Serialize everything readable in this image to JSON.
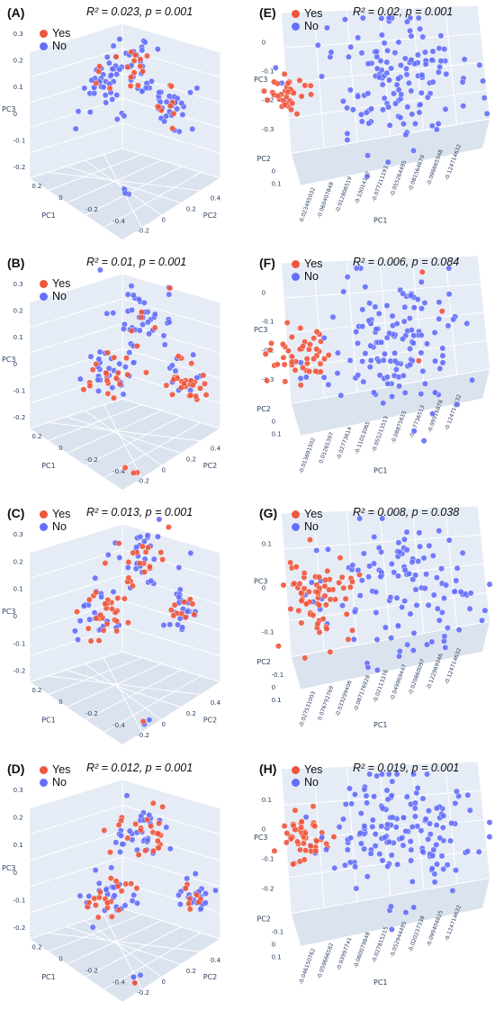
{
  "legend": {
    "yes_label": "Yes",
    "no_label": "No"
  },
  "colors": {
    "yes": "#ef553b",
    "no": "#636efa",
    "pane": "#e5ecf6",
    "grid": "#ffffff"
  },
  "chart_data": [
    {
      "tag": "(A)",
      "type": "scatter",
      "kind": "pca",
      "title": "R² = 0.023, p = 0.001",
      "zaxis": "PC3",
      "xaxis": "PC1",
      "yaxis": "PC2",
      "z_ticks": [
        "0.3",
        "0.2",
        "0.1",
        "0",
        "-0.1",
        "-0.2"
      ],
      "x_ticks": [
        "0.2",
        "0",
        "-0.2",
        "-0.4"
      ],
      "y_ticks": [
        "-0.2",
        "0",
        "0.2",
        "0.4"
      ],
      "clusters": [
        {
          "x": 0.43,
          "y": 0.35,
          "spread": 0.065,
          "n_yes": 4,
          "n_no": 36
        },
        {
          "x": 0.54,
          "y": 0.26,
          "spread": 0.07,
          "n_yes": 14,
          "n_no": 32
        },
        {
          "x": 0.69,
          "y": 0.43,
          "spread": 0.055,
          "n_yes": 8,
          "n_no": 30
        },
        {
          "x": 0.52,
          "y": 0.77,
          "spread": 0.012,
          "n_yes": 0,
          "n_no": 5
        }
      ]
    },
    {
      "tag": "(B)",
      "type": "scatter",
      "kind": "pca",
      "title": "R² = 0.01, p = 0.001",
      "zaxis": "PC3",
      "xaxis": "PC1",
      "yaxis": "PC2",
      "z_ticks": [
        "0.3",
        "0.2",
        "0.1",
        "0",
        "-0.1",
        "-0.2"
      ],
      "x_ticks": [
        "0.2",
        "0",
        "-0.2",
        "-0.4"
      ],
      "y_ticks": [
        "-0.2",
        "0",
        "0.2",
        "0.4"
      ],
      "clusters": [
        {
          "x": 0.45,
          "y": 0.5,
          "spread": 0.06,
          "n_yes": 18,
          "n_no": 28
        },
        {
          "x": 0.58,
          "y": 0.3,
          "spread": 0.07,
          "n_yes": 8,
          "n_no": 40
        },
        {
          "x": 0.76,
          "y": 0.53,
          "spread": 0.05,
          "n_yes": 26,
          "n_no": 12
        },
        {
          "x": 0.55,
          "y": 0.9,
          "spread": 0.01,
          "n_yes": 3,
          "n_no": 0
        }
      ]
    },
    {
      "tag": "(C)",
      "type": "scatter",
      "kind": "pca",
      "title": "R² = 0.013, p = 0.001",
      "zaxis": "PC3",
      "xaxis": "PC1",
      "yaxis": "PC2",
      "z_ticks": [
        "0.3",
        "0.2",
        "0.1",
        "0",
        "-0.1",
        "-0.2"
      ],
      "x_ticks": [
        "0.2",
        "0",
        "-0.2",
        "-0.4"
      ],
      "y_ticks": [
        "-0.2",
        "0",
        "0.2",
        "0.4"
      ],
      "clusters": [
        {
          "x": 0.42,
          "y": 0.45,
          "spread": 0.06,
          "n_yes": 28,
          "n_no": 24
        },
        {
          "x": 0.58,
          "y": 0.22,
          "spread": 0.07,
          "n_yes": 20,
          "n_no": 30
        },
        {
          "x": 0.74,
          "y": 0.43,
          "spread": 0.045,
          "n_yes": 10,
          "n_no": 26
        },
        {
          "x": 0.6,
          "y": 0.88,
          "spread": 0.02,
          "n_yes": 1,
          "n_no": 2
        }
      ]
    },
    {
      "tag": "(D)",
      "type": "scatter",
      "kind": "pca",
      "title": "R² = 0.012, p = 0.001",
      "zaxis": "PC3",
      "xaxis": "PC1",
      "yaxis": "PC2",
      "z_ticks": [
        "0.3",
        "0.2",
        "0.1",
        "0",
        "-0.1",
        "-0.2"
      ],
      "x_ticks": [
        "0.2",
        "0",
        "-0.2",
        "-0.4"
      ],
      "y_ticks": [
        "-0.2",
        "0",
        "0.2",
        "0.4"
      ],
      "clusters": [
        {
          "x": 0.45,
          "y": 0.55,
          "spread": 0.06,
          "n_yes": 22,
          "n_no": 26
        },
        {
          "x": 0.58,
          "y": 0.29,
          "spread": 0.07,
          "n_yes": 24,
          "n_no": 32
        },
        {
          "x": 0.79,
          "y": 0.56,
          "spread": 0.045,
          "n_yes": 8,
          "n_no": 24
        },
        {
          "x": 0.55,
          "y": 0.88,
          "spread": 0.012,
          "n_yes": 1,
          "n_no": 4
        }
      ]
    },
    {
      "tag": "(E)",
      "type": "scatter",
      "kind": "wide",
      "title": "R² = 0.02, p = 0.001",
      "zaxis": "PC3",
      "xaxis": "PC1",
      "yaxis": "PC2",
      "z_ticks": [
        "0",
        "-0.1",
        "-0.2",
        "-0.3"
      ],
      "side_ticks": [
        "0",
        "0.1"
      ],
      "bottom_ticks": [
        "0.023495032",
        "-0.060407848",
        "-0.012806519",
        "-0.10014142",
        "-0.077211193",
        "-0.055264495",
        "-0.081564679",
        "-0.098665948",
        "-0.124714632"
      ],
      "clusters": [
        {
          "x": 0.15,
          "y": 0.38,
          "spread": 0.045,
          "n_yes": 34,
          "n_no": 3
        },
        {
          "x": 0.6,
          "y": 0.33,
          "spread": 0.15,
          "n_yes": 0,
          "n_no": 140
        }
      ]
    },
    {
      "tag": "(F)",
      "type": "scatter",
      "kind": "wide",
      "title": "R² = 0.006, p = 0.084",
      "zaxis": "PC3",
      "xaxis": "PC1",
      "yaxis": "PC2",
      "z_ticks": [
        "0",
        "-0.1",
        "-0.2",
        "-0.3"
      ],
      "side_ticks": [
        "0",
        "0.1"
      ],
      "bottom_ticks": [
        "-0.013691502",
        "0.01265397",
        "-0.02773614",
        "-0.11013065",
        "-0.055213513",
        "-0.08875615",
        "-0.07736513",
        "-0.09916878",
        "-0.124714632"
      ],
      "clusters": [
        {
          "x": 0.18,
          "y": 0.42,
          "spread": 0.07,
          "n_yes": 48,
          "n_no": 3
        },
        {
          "x": 0.6,
          "y": 0.38,
          "spread": 0.15,
          "n_yes": 3,
          "n_no": 130
        }
      ]
    },
    {
      "tag": "(G)",
      "type": "scatter",
      "kind": "wide",
      "title": "R² = 0.008, p = 0.038",
      "zaxis": "PC3",
      "xaxis": "PC1",
      "yaxis": "PC2",
      "z_ticks": [
        "0.1",
        "0",
        "-0.1"
      ],
      "side_ticks": [
        "-0.1",
        "0",
        "0.1"
      ],
      "bottom_ticks": [
        "-0.027531003",
        "0.076792769",
        "-0.033299406",
        "-0.087176928",
        "-0.02113376",
        "-0.049969447",
        "-0.020860097",
        "-0.122969946",
        "-0.124714632"
      ],
      "clusters": [
        {
          "x": 0.27,
          "y": 0.38,
          "spread": 0.09,
          "n_yes": 70,
          "n_no": 8
        },
        {
          "x": 0.66,
          "y": 0.35,
          "spread": 0.15,
          "n_yes": 0,
          "n_no": 110
        }
      ]
    },
    {
      "tag": "(H)",
      "type": "scatter",
      "kind": "wide",
      "title": "R² = 0.019, p = 0.001",
      "zaxis": "PC3",
      "xaxis": "PC1",
      "yaxis": "PC2",
      "z_ticks": [
        "0.1",
        "0",
        "-0.1",
        "-0.2"
      ],
      "side_ticks": [
        "-0.1",
        "0",
        "0.1"
      ],
      "bottom_ticks": [
        "-0.046150762",
        "-0.059666582",
        "-0.03997741",
        "-0.060079848",
        "-0.027815215",
        "-0.052944495",
        "-0.020237338",
        "-0.099404825",
        "-0.124714632"
      ],
      "clusters": [
        {
          "x": 0.2,
          "y": 0.32,
          "spread": 0.06,
          "n_yes": 45,
          "n_no": 3
        },
        {
          "x": 0.62,
          "y": 0.3,
          "spread": 0.15,
          "n_yes": 0,
          "n_no": 150
        }
      ]
    }
  ]
}
